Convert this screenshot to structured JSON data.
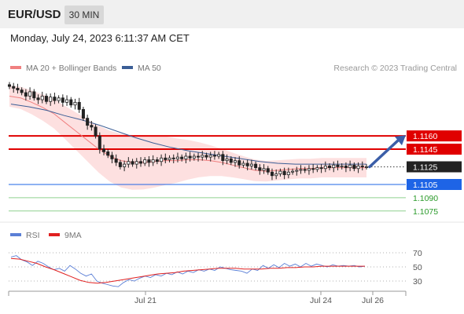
{
  "header": {
    "pair": "EUR/USD",
    "timeframe": "30 MIN",
    "datetime": "Monday, July 24, 2023 6:11:37 AM CET"
  },
  "legend": {
    "ma20_label": "MA 20 + Bollinger Bands",
    "ma50_label": "MA 50",
    "ma20_color": "#f08080",
    "ma50_color": "#3b5e96",
    "source": "Research © 2023 Trading Central"
  },
  "rsi_legend": {
    "rsi_label": "RSI",
    "ma_label": "9MA",
    "rsi_color": "#5b7fd6",
    "ma_color": "#e02020"
  },
  "chart_data": [
    {
      "type": "candlestick",
      "title": "EUR/USD",
      "ylim": [
        1.1065,
        1.1225
      ],
      "x_ticks": [
        "Jul 21",
        "Jul 24",
        "Jul 26"
      ],
      "levels": [
        {
          "label": "1.1160",
          "value": 1.116,
          "kind": "resistance",
          "color": "#e00000"
        },
        {
          "label": "1.1145",
          "value": 1.1145,
          "kind": "resistance",
          "color": "#e00000"
        },
        {
          "label": "1.1125",
          "value": 1.1125,
          "kind": "last",
          "color": "#222222"
        },
        {
          "label": "1.1105",
          "value": 1.1105,
          "kind": "pivot",
          "color": "#1e64e6"
        },
        {
          "label": "1.1090",
          "value": 1.109,
          "kind": "support",
          "color": "#2a9a2a"
        },
        {
          "label": "1.1075",
          "value": 1.1075,
          "kind": "support",
          "color": "#2a9a2a"
        }
      ],
      "close_series": [
        1.1216,
        1.1214,
        1.1212,
        1.1209,
        1.1205,
        1.121,
        1.1203,
        1.1201,
        1.1205,
        1.1199,
        1.1204,
        1.12,
        1.1203,
        1.1198,
        1.1201,
        1.1195,
        1.1198,
        1.119,
        1.118,
        1.1172,
        1.117,
        1.116,
        1.1145,
        1.1142,
        1.1138,
        1.1134,
        1.113,
        1.1125,
        1.1128,
        1.1131,
        1.1128,
        1.1131,
        1.1129,
        1.1133,
        1.113,
        1.1133,
        1.1131,
        1.1135,
        1.1133,
        1.1135,
        1.1134,
        1.1136,
        1.1134,
        1.1137,
        1.1135,
        1.1137,
        1.1136,
        1.1138,
        1.1136,
        1.1138,
        1.1137,
        1.1139,
        1.1132,
        1.1134,
        1.113,
        1.1132,
        1.1127,
        1.1129,
        1.1126,
        1.1128,
        1.1124,
        1.1121,
        1.1123,
        1.1119,
        1.1115,
        1.1117,
        1.112,
        1.1116,
        1.1119,
        1.112,
        1.1121,
        1.1122,
        1.1121,
        1.1123,
        1.1122,
        1.1124,
        1.1123,
        1.1126,
        1.1124,
        1.1127,
        1.1125,
        1.1126,
        1.1124,
        1.1127,
        1.1123,
        1.1126,
        1.1125,
        1.1125
      ],
      "ma20": [
        1.1205,
        1.1203,
        1.1198,
        1.1192,
        1.1185,
        1.1175,
        1.1165,
        1.1155,
        1.1145,
        1.1137,
        1.1132,
        1.113,
        1.113,
        1.1131,
        1.1132,
        1.1132,
        1.1133,
        1.1133,
        1.1132,
        1.113,
        1.1127,
        1.1124,
        1.1121,
        1.112,
        1.1121,
        1.1122,
        1.1123,
        1.1123,
        1.1124,
        1.1124,
        1.1124,
        1.1124,
        1.1124
      ],
      "ma50": [
        1.1196,
        1.1193,
        1.1189,
        1.1183,
        1.1178,
        1.1172,
        1.1165,
        1.1158,
        1.1152,
        1.1147,
        1.1143,
        1.114,
        1.1137,
        1.1134,
        1.1131,
        1.1129,
        1.1128,
        1.1128,
        1.1128,
        1.1128,
        1.1128
      ],
      "forecast_target": 1.116
    },
    {
      "type": "line",
      "title": "RSI",
      "ylim": [
        20,
        80
      ],
      "y_ticks": [
        "70",
        "50",
        "30"
      ],
      "series": [
        {
          "name": "RSI",
          "values": [
            64,
            66,
            60,
            57,
            52,
            58,
            55,
            50,
            46,
            48,
            44,
            52,
            47,
            41,
            37,
            40,
            30,
            27,
            25,
            23,
            22,
            28,
            32,
            30,
            34,
            37,
            35,
            39,
            37,
            41,
            39,
            43,
            40,
            44,
            42,
            46,
            44,
            47,
            45,
            50,
            48,
            46,
            45,
            44,
            41,
            47,
            45,
            52,
            48,
            53,
            49,
            55,
            51,
            54,
            50,
            55,
            51,
            54,
            52,
            50,
            53,
            51,
            52,
            51,
            52,
            50,
            51
          ]
        },
        {
          "name": "9MA",
          "values": [
            62,
            61,
            58,
            55,
            50,
            46,
            41,
            36,
            31,
            28,
            27,
            28,
            30,
            32,
            34,
            36,
            38,
            40,
            41,
            42,
            44,
            45,
            46,
            47,
            48,
            48,
            48,
            47,
            47,
            47,
            48,
            48,
            49,
            49,
            50,
            50,
            51,
            51,
            51,
            51,
            51,
            51
          ]
        }
      ]
    }
  ]
}
